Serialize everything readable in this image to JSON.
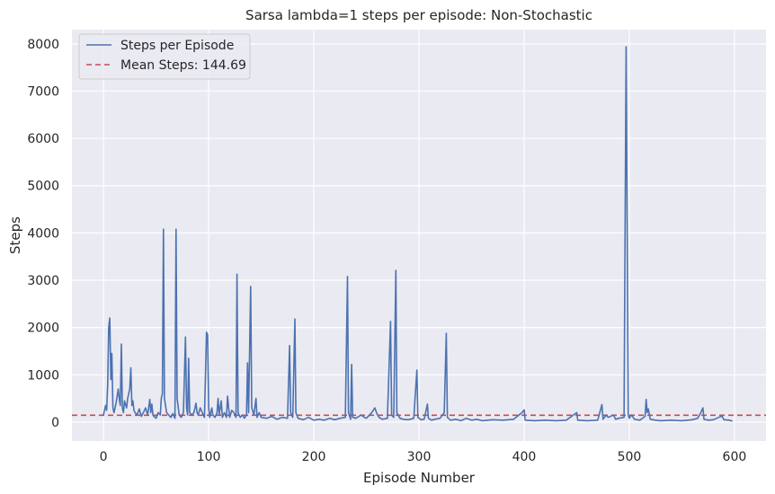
{
  "chart_data": {
    "type": "line",
    "title": "Sarsa lambda=1 steps per episode: Non-Stochastic",
    "xlabel": "Episode Number",
    "ylabel": "Steps",
    "xlim": [
      -30,
      630
    ],
    "ylim": [
      -400,
      8300
    ],
    "xticks": [
      0,
      100,
      200,
      300,
      400,
      500,
      600
    ],
    "xtick_labels": [
      "0",
      "100",
      "200",
      "300",
      "400",
      "500",
      "600"
    ],
    "yticks": [
      0,
      1000,
      2000,
      3000,
      4000,
      5000,
      6000,
      7000,
      8000
    ],
    "ytick_labels": [
      "0",
      "1000",
      "2000",
      "3000",
      "4000",
      "5000",
      "6000",
      "7000",
      "8000"
    ],
    "grid": true,
    "legend_position": "top-left",
    "background": "#eaeaf2",
    "series": [
      {
        "name": "Steps per Episode",
        "style": "solid",
        "color": "#4c72b0",
        "points": [
          [
            0,
            150
          ],
          [
            2,
            350
          ],
          [
            3,
            250
          ],
          [
            4,
            800
          ],
          [
            5,
            2000
          ],
          [
            6,
            2200
          ],
          [
            7,
            900
          ],
          [
            8,
            1450
          ],
          [
            9,
            300
          ],
          [
            10,
            200
          ],
          [
            12,
            400
          ],
          [
            14,
            700
          ],
          [
            15,
            500
          ],
          [
            16,
            350
          ],
          [
            17,
            1650
          ],
          [
            18,
            300
          ],
          [
            19,
            200
          ],
          [
            20,
            450
          ],
          [
            22,
            300
          ],
          [
            23,
            500
          ],
          [
            25,
            700
          ],
          [
            26,
            1150
          ],
          [
            27,
            350
          ],
          [
            28,
            450
          ],
          [
            29,
            250
          ],
          [
            30,
            200
          ],
          [
            32,
            150
          ],
          [
            34,
            280
          ],
          [
            35,
            200
          ],
          [
            36,
            120
          ],
          [
            38,
            200
          ],
          [
            40,
            300
          ],
          [
            42,
            150
          ],
          [
            44,
            480
          ],
          [
            45,
            200
          ],
          [
            46,
            380
          ],
          [
            47,
            150
          ],
          [
            48,
            120
          ],
          [
            50,
            80
          ],
          [
            52,
            200
          ],
          [
            54,
            150
          ],
          [
            55,
            500
          ],
          [
            56,
            600
          ],
          [
            57,
            4080
          ],
          [
            58,
            500
          ],
          [
            60,
            200
          ],
          [
            62,
            150
          ],
          [
            64,
            100
          ],
          [
            66,
            180
          ],
          [
            68,
            80
          ],
          [
            69,
            4080
          ],
          [
            70,
            500
          ],
          [
            72,
            150
          ],
          [
            74,
            100
          ],
          [
            76,
            200
          ],
          [
            78,
            1800
          ],
          [
            79,
            300
          ],
          [
            80,
            150
          ],
          [
            81,
            1350
          ],
          [
            82,
            200
          ],
          [
            84,
            150
          ],
          [
            86,
            200
          ],
          [
            88,
            400
          ],
          [
            89,
            200
          ],
          [
            90,
            150
          ],
          [
            92,
            300
          ],
          [
            94,
            200
          ],
          [
            96,
            100
          ],
          [
            98,
            1900
          ],
          [
            99,
            1850
          ],
          [
            100,
            300
          ],
          [
            101,
            100
          ],
          [
            103,
            300
          ],
          [
            104,
            150
          ],
          [
            106,
            100
          ],
          [
            108,
            200
          ],
          [
            109,
            500
          ],
          [
            110,
            150
          ],
          [
            112,
            450
          ],
          [
            113,
            100
          ],
          [
            115,
            200
          ],
          [
            117,
            100
          ],
          [
            118,
            550
          ],
          [
            119,
            300
          ],
          [
            120,
            100
          ],
          [
            122,
            250
          ],
          [
            124,
            200
          ],
          [
            126,
            100
          ],
          [
            127,
            3130
          ],
          [
            128,
            200
          ],
          [
            130,
            100
          ],
          [
            132,
            150
          ],
          [
            134,
            80
          ],
          [
            136,
            150
          ],
          [
            137,
            1250
          ],
          [
            138,
            200
          ],
          [
            140,
            2870
          ],
          [
            141,
            300
          ],
          [
            143,
            150
          ],
          [
            145,
            500
          ],
          [
            146,
            100
          ],
          [
            148,
            200
          ],
          [
            150,
            100
          ],
          [
            155,
            80
          ],
          [
            160,
            120
          ],
          [
            165,
            60
          ],
          [
            170,
            100
          ],
          [
            175,
            80
          ],
          [
            177,
            1620
          ],
          [
            178,
            200
          ],
          [
            180,
            100
          ],
          [
            182,
            2180
          ],
          [
            183,
            200
          ],
          [
            185,
            80
          ],
          [
            190,
            50
          ],
          [
            195,
            100
          ],
          [
            200,
            40
          ],
          [
            205,
            60
          ],
          [
            210,
            40
          ],
          [
            215,
            80
          ],
          [
            220,
            50
          ],
          [
            225,
            80
          ],
          [
            230,
            100
          ],
          [
            232,
            3080
          ],
          [
            233,
            200
          ],
          [
            235,
            60
          ],
          [
            236,
            1220
          ],
          [
            237,
            100
          ],
          [
            240,
            80
          ],
          [
            245,
            150
          ],
          [
            248,
            100
          ],
          [
            250,
            80
          ],
          [
            255,
            200
          ],
          [
            258,
            300
          ],
          [
            260,
            180
          ],
          [
            262,
            100
          ],
          [
            265,
            60
          ],
          [
            270,
            80
          ],
          [
            273,
            2130
          ],
          [
            274,
            150
          ],
          [
            276,
            100
          ],
          [
            278,
            3210
          ],
          [
            279,
            200
          ],
          [
            282,
            80
          ],
          [
            285,
            60
          ],
          [
            290,
            50
          ],
          [
            295,
            80
          ],
          [
            298,
            1100
          ],
          [
            299,
            100
          ],
          [
            302,
            50
          ],
          [
            305,
            60
          ],
          [
            308,
            380
          ],
          [
            309,
            80
          ],
          [
            312,
            40
          ],
          [
            315,
            60
          ],
          [
            320,
            80
          ],
          [
            324,
            200
          ],
          [
            326,
            1880
          ],
          [
            327,
            100
          ],
          [
            330,
            40
          ],
          [
            335,
            60
          ],
          [
            340,
            30
          ],
          [
            345,
            80
          ],
          [
            350,
            40
          ],
          [
            355,
            60
          ],
          [
            360,
            30
          ],
          [
            370,
            50
          ],
          [
            380,
            40
          ],
          [
            390,
            60
          ],
          [
            398,
            200
          ],
          [
            400,
            260
          ],
          [
            401,
            40
          ],
          [
            410,
            30
          ],
          [
            420,
            40
          ],
          [
            430,
            30
          ],
          [
            440,
            40
          ],
          [
            450,
            200
          ],
          [
            451,
            40
          ],
          [
            460,
            30
          ],
          [
            470,
            40
          ],
          [
            474,
            370
          ],
          [
            475,
            60
          ],
          [
            478,
            150
          ],
          [
            480,
            100
          ],
          [
            485,
            150
          ],
          [
            487,
            60
          ],
          [
            490,
            80
          ],
          [
            495,
            100
          ],
          [
            497,
            7940
          ],
          [
            499,
            150
          ],
          [
            500,
            80
          ],
          [
            502,
            150
          ],
          [
            505,
            60
          ],
          [
            510,
            40
          ],
          [
            515,
            120
          ],
          [
            516,
            480
          ],
          [
            517,
            200
          ],
          [
            518,
            280
          ],
          [
            520,
            60
          ],
          [
            525,
            40
          ],
          [
            530,
            30
          ],
          [
            540,
            40
          ],
          [
            550,
            30
          ],
          [
            560,
            50
          ],
          [
            565,
            80
          ],
          [
            568,
            200
          ],
          [
            570,
            300
          ],
          [
            571,
            60
          ],
          [
            575,
            40
          ],
          [
            580,
            50
          ],
          [
            585,
            100
          ],
          [
            588,
            130
          ],
          [
            590,
            50
          ],
          [
            595,
            40
          ],
          [
            598,
            20
          ]
        ]
      },
      {
        "name": "Mean Steps: 144.69",
        "style": "dashed",
        "color": "#c44e52",
        "y": 144.69
      }
    ]
  }
}
